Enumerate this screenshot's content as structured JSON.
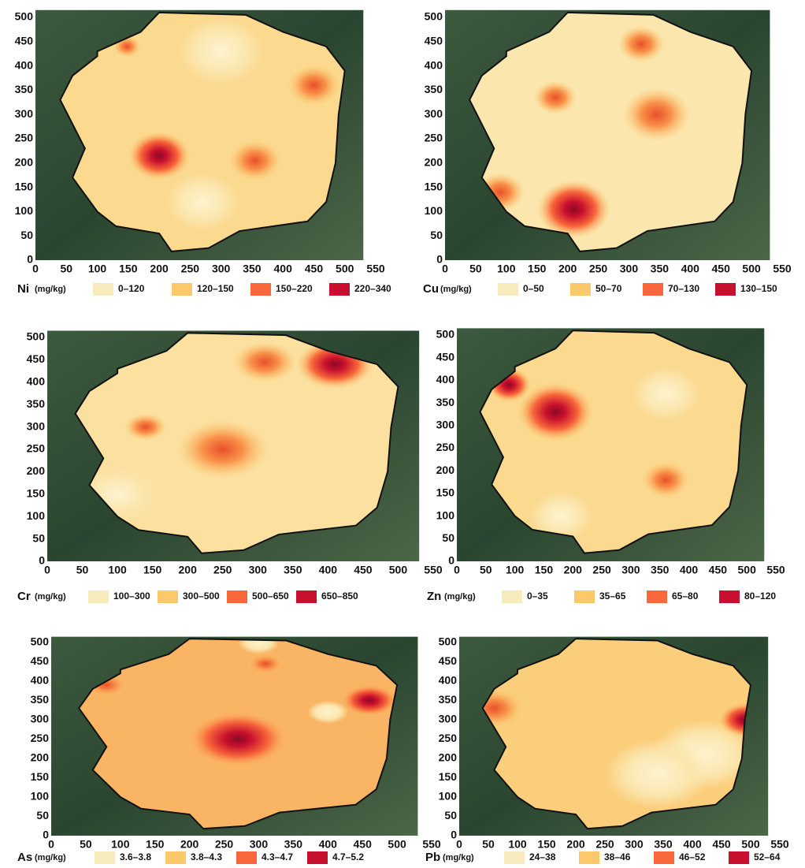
{
  "x_ticks": [
    0,
    50,
    100,
    150,
    200,
    250,
    300,
    350,
    400,
    450,
    500,
    550
  ],
  "y_ticks": [
    0,
    50,
    100,
    150,
    200,
    250,
    300,
    350,
    400,
    450,
    500
  ],
  "legend_colors": [
    "#f6ebbd",
    "#fbc86a",
    "#f8683a",
    "#c8102e"
  ],
  "panels": [
    {
      "element": "Ni",
      "unit": "(mg/kg)",
      "legend": [
        "0–120",
        "120–150",
        "150–220",
        "220–340"
      ]
    },
    {
      "element": "Cu",
      "unit": "(mg/kg)",
      "legend": [
        "0–50",
        "50–70",
        "70–130",
        "130–150"
      ]
    },
    {
      "element": "Cr",
      "unit": "(mg/kg)",
      "legend": [
        "100–300",
        "300–500",
        "500–650",
        "650–850"
      ]
    },
    {
      "element": "Zn",
      "unit": "(mg/kg)",
      "legend": [
        "0–35",
        "35–65",
        "65–80",
        "80–120"
      ]
    },
    {
      "element": "As",
      "unit": "(mg/kg)",
      "legend": [
        "3.6–3.8",
        "3.8–4.3",
        "4.3–4.7",
        "4.7–5.2"
      ]
    },
    {
      "element": "Pb",
      "unit": "(mg/kg)",
      "legend": [
        "24–38",
        "38–46",
        "46–52",
        "52–64"
      ]
    }
  ]
}
